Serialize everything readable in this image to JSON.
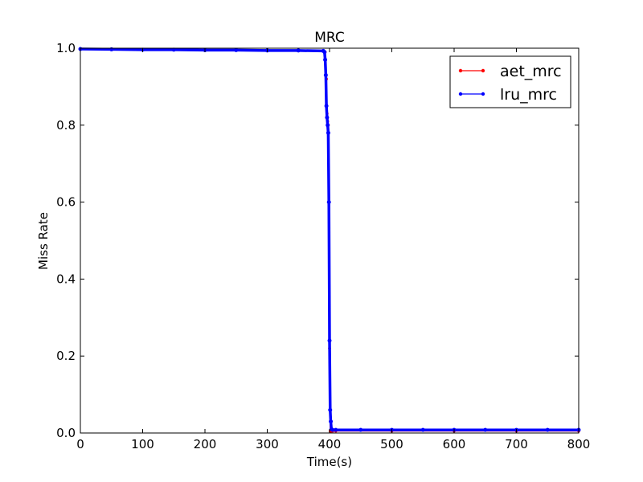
{
  "chart_data": {
    "type": "line",
    "title": "MRC",
    "xlabel": "Time(s)",
    "ylabel": "Miss Rate",
    "xlim": [
      0,
      800
    ],
    "ylim": [
      0.0,
      1.0
    ],
    "x_ticks": [
      "0",
      "100",
      "200",
      "300",
      "400",
      "500",
      "600",
      "700",
      "800"
    ],
    "y_ticks": [
      "0.0",
      "0.2",
      "0.4",
      "0.6",
      "0.8",
      "1.0"
    ],
    "grid": false,
    "legend_position": "top-right",
    "series": [
      {
        "name": "aet_mrc",
        "color": "#ff0000",
        "x": [
          0,
          100,
          200,
          300,
          390,
          393,
          395,
          396,
          397,
          398,
          399,
          400,
          401,
          402,
          403,
          405,
          410,
          500,
          600,
          700,
          800
        ],
        "y": [
          0.998,
          0.997,
          0.996,
          0.995,
          0.994,
          0.99,
          0.92,
          0.83,
          0.81,
          0.8,
          0.6,
          0.22,
          0.005,
          0.005,
          0.005,
          0.005,
          0.005,
          0.005,
          0.005,
          0.005,
          0.005
        ]
      },
      {
        "name": "lru_mrc",
        "color": "#0000ff",
        "x": [
          0,
          50,
          100,
          150,
          200,
          250,
          300,
          350,
          390,
          392,
          393,
          394,
          395,
          396,
          397,
          398,
          399,
          400,
          401,
          402,
          403,
          405,
          410,
          450,
          500,
          550,
          600,
          650,
          700,
          750,
          800
        ],
        "y": [
          0.998,
          0.997,
          0.996,
          0.996,
          0.995,
          0.995,
          0.994,
          0.994,
          0.993,
          0.99,
          0.97,
          0.93,
          0.85,
          0.82,
          0.8,
          0.78,
          0.6,
          0.24,
          0.06,
          0.03,
          0.01,
          0.008,
          0.008,
          0.008,
          0.008,
          0.008,
          0.008,
          0.008,
          0.008,
          0.008,
          0.008
        ]
      }
    ]
  }
}
